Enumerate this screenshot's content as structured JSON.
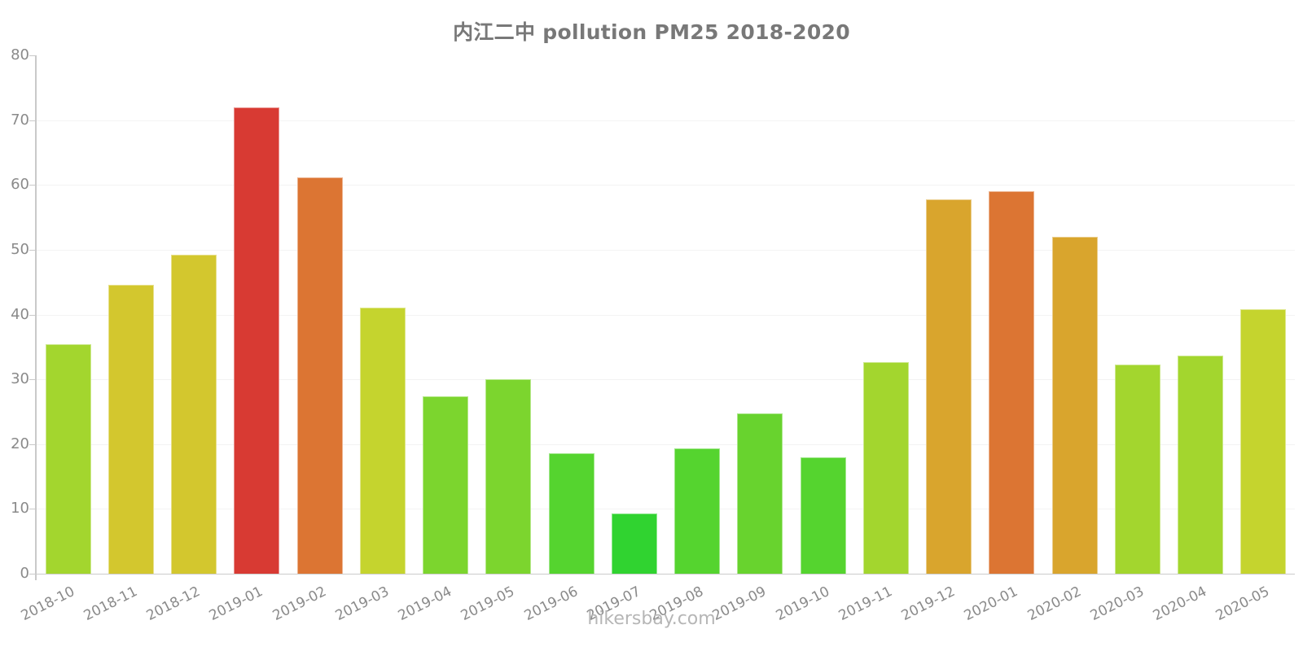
{
  "title": "内江二中 pollution PM25 2018-2020",
  "footer": "hikersbay.com",
  "chart_data": {
    "type": "bar",
    "title": "内江二中 pollution PM25 2018-2020",
    "xlabel": "",
    "ylabel": "",
    "categories": [
      "2018-10",
      "2018-11",
      "2018-12",
      "2019-01",
      "2019-02",
      "2019-03",
      "2019-04",
      "2019-05",
      "2019-06",
      "2019-07",
      "2019-08",
      "2019-09",
      "2019-10",
      "2019-11",
      "2019-12",
      "2020-01",
      "2020-02",
      "2020-03",
      "2020-04",
      "2020-05"
    ],
    "values": [
      35.4,
      44.6,
      49.2,
      72,
      61.2,
      41.1,
      27.4,
      30,
      18.6,
      9.3,
      19.4,
      24.8,
      18,
      32.7,
      57.8,
      59,
      52,
      32.3,
      33.7,
      40.8
    ],
    "bar_colors": [
      "#A3D62E",
      "#D3C72E",
      "#D3C72E",
      "#D83A33",
      "#DC7533",
      "#C5D42E",
      "#7CD52E",
      "#7CD52E",
      "#55D42F",
      "#30D330",
      "#55D42F",
      "#68D32E",
      "#55D42F",
      "#A3D62E",
      "#D9A52D",
      "#DC7533",
      "#D9A52D",
      "#A3D62E",
      "#A3D62E",
      "#C5D42E"
    ],
    "ylim": [
      0,
      80
    ],
    "yticks": [
      0,
      10,
      20,
      30,
      40,
      50,
      60,
      70,
      80
    ],
    "grid": true,
    "legend": "none",
    "watermark": "hikersbay.com",
    "colors": {
      "title_text": "#787878",
      "axis_line": "#c9c9c9",
      "grid_line": "#f3f3f3",
      "tick_label": "#8a8a8a",
      "watermark_text": "#b6b6b6"
    }
  }
}
